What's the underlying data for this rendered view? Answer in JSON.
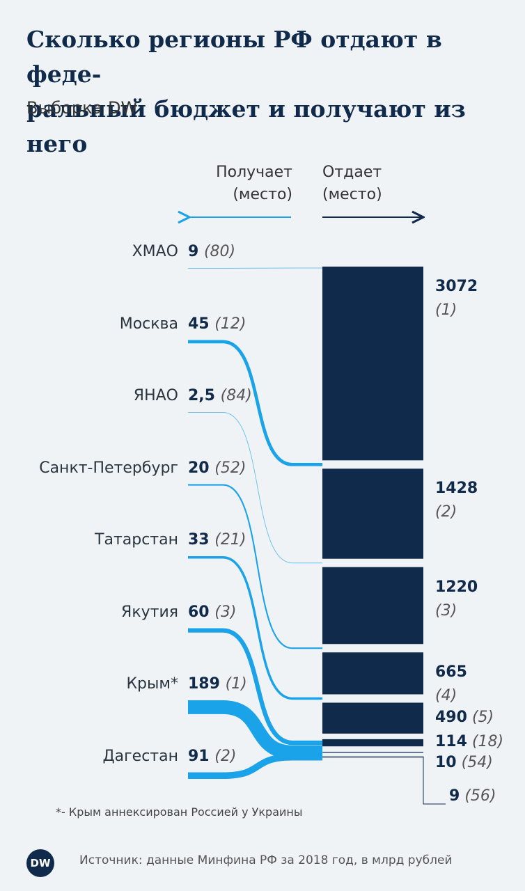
{
  "title": "Сколько регионы РФ отдают в феде-ральный бюджет и получают из него",
  "subtitle": "Выборка DW",
  "headers": {
    "receives": "Получает (место)",
    "gives": "Отдает (место)"
  },
  "footnote": "*- Крым аннексирован Россией у Украины",
  "source": "Источник: данные Минфина РФ за 2018 год, в млрд рублей",
  "logo": "DW",
  "colors": {
    "receives": "#1aa3e8",
    "gives": "#0f2a4a"
  },
  "chart_data": {
    "type": "flow",
    "regions": [
      {
        "name": "ХМАО",
        "receives": 9,
        "receives_rank": "(80)",
        "gives": 3072,
        "gives_rank": "(1)"
      },
      {
        "name": "Москва",
        "receives": 45,
        "receives_rank": "(12)",
        "gives": 1428,
        "gives_rank": "(2)"
      },
      {
        "name": "ЯНАО",
        "receives": 2.5,
        "receives_label": "2,5",
        "receives_rank": "(84)",
        "gives": 1220,
        "gives_rank": "(3)"
      },
      {
        "name": "Санкт-Петербург",
        "receives": 20,
        "receives_rank": "(52)",
        "gives": 665,
        "gives_rank": "(4)"
      },
      {
        "name": "Татарстан",
        "receives": 33,
        "receives_rank": "(21)",
        "gives": 490,
        "gives_rank": "(5)"
      },
      {
        "name": "Якутия",
        "receives": 60,
        "receives_rank": "(3)",
        "gives": 114,
        "gives_rank": "(18)"
      },
      {
        "name": "Крым*",
        "receives": 189,
        "receives_rank": "(1)",
        "gives": 10,
        "gives_rank": "(54)"
      },
      {
        "name": "Дагестан",
        "receives": 91,
        "receives_rank": "(2)",
        "gives": 9,
        "gives_rank": "(56)"
      }
    ]
  }
}
